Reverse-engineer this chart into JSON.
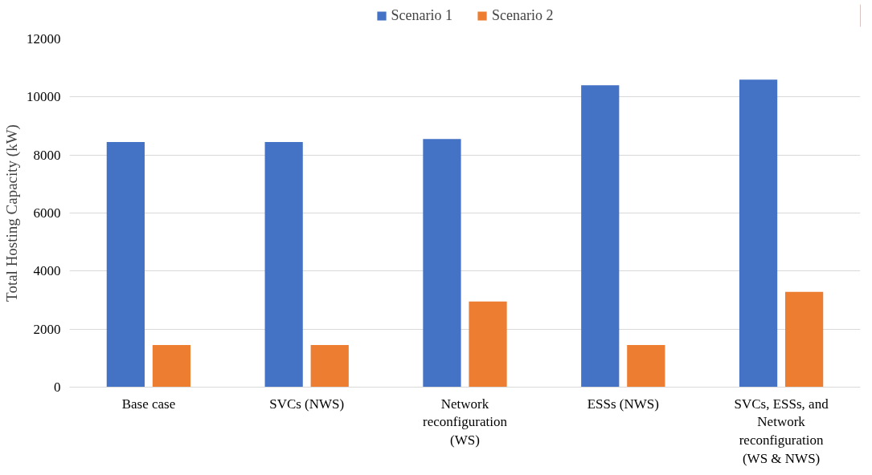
{
  "chart_data": {
    "type": "bar",
    "ylabel": "Total Hosting Capacity (kW)",
    "categories": [
      "Base case",
      "SVCs (NWS)",
      "Network reconfiguration (WS)",
      "ESSs (NWS)",
      "SVCs, ESSs, and Network reconfiguration (WS & NWS)"
    ],
    "series": [
      {
        "name": "Scenario 1",
        "color": "#4472c4",
        "values": [
          8450,
          8450,
          8550,
          10400,
          10600
        ]
      },
      {
        "name": "Scenario 2",
        "color": "#ed7d31",
        "values": [
          1450,
          1450,
          2950,
          1450,
          3280
        ]
      }
    ],
    "ylim": [
      0,
      12000
    ],
    "yticks": [
      0,
      2000,
      4000,
      6000,
      8000,
      10000,
      12000
    ],
    "grid": "y",
    "legend": "top"
  }
}
